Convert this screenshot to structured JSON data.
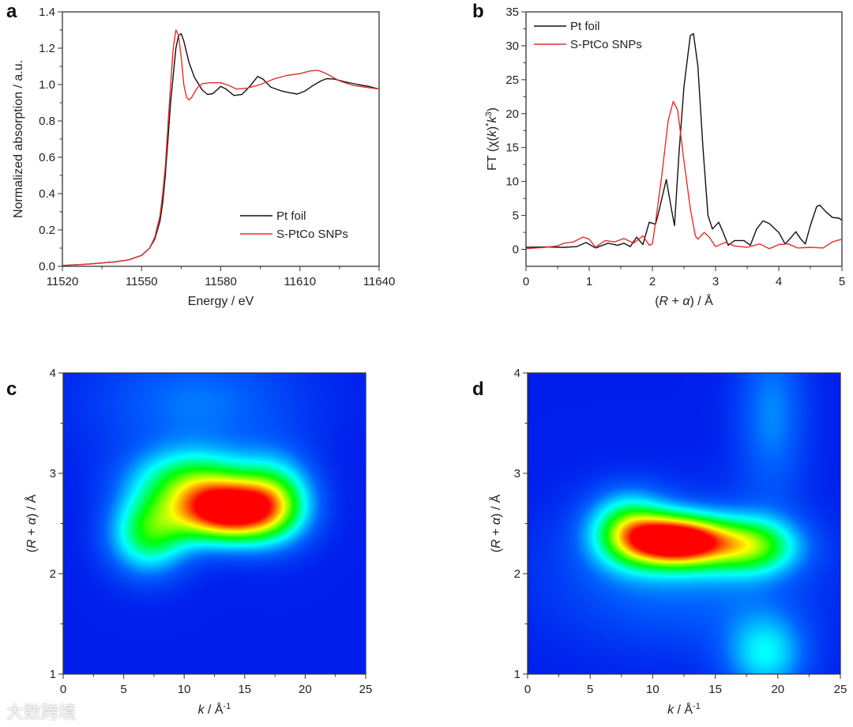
{
  "watermark": "大数跨境",
  "chart_data": [
    {
      "panel": "a",
      "type": "line",
      "xlabel": "Energy / eV",
      "ylabel": "Normalized absorption / a.u.",
      "xlim": [
        11520,
        11640
      ],
      "ylim": [
        0,
        1.4
      ],
      "xticks": [
        "11520",
        "11550",
        "11580",
        "11610",
        "11640"
      ],
      "yticks": [
        "0.0",
        "0.2",
        "0.4",
        "0.6",
        "0.8",
        "1.0",
        "1.2",
        "1.4"
      ],
      "legend": {
        "position": "bottom-right"
      },
      "series": [
        {
          "name": "Pt foil",
          "color": "#111111",
          "x": [
            11520,
            11530,
            11540,
            11545,
            11550,
            11553,
            11555,
            11557,
            11558,
            11559,
            11560,
            11561,
            11562,
            11563,
            11564,
            11565,
            11566,
            11568,
            11570,
            11573,
            11575,
            11577,
            11580,
            11582,
            11585,
            11588,
            11591,
            11594,
            11596,
            11599,
            11603,
            11606,
            11609,
            11612,
            11615,
            11618,
            11620,
            11623,
            11627,
            11632,
            11636,
            11640
          ],
          "y": [
            0.005,
            0.012,
            0.025,
            0.035,
            0.06,
            0.1,
            0.15,
            0.25,
            0.35,
            0.5,
            0.7,
            0.9,
            1.05,
            1.2,
            1.27,
            1.28,
            1.24,
            1.12,
            1.04,
            0.97,
            0.945,
            0.95,
            0.99,
            0.975,
            0.94,
            0.945,
            0.99,
            1.045,
            1.03,
            0.985,
            0.965,
            0.955,
            0.948,
            0.965,
            0.995,
            1.02,
            1.032,
            1.03,
            1.015,
            1.0,
            0.99,
            0.975
          ]
        },
        {
          "name": "S-PtCo SNPs",
          "color": "#e03030",
          "x": [
            11520,
            11530,
            11540,
            11545,
            11550,
            11553,
            11555,
            11557,
            11558,
            11559,
            11560,
            11561,
            11562,
            11563,
            11564,
            11565,
            11566,
            11567,
            11568,
            11569,
            11571,
            11573,
            11576,
            11580,
            11583,
            11586,
            11590,
            11595,
            11600,
            11605,
            11610,
            11614,
            11617,
            11620,
            11625,
            11630,
            11635,
            11640
          ],
          "y": [
            0.005,
            0.012,
            0.025,
            0.035,
            0.06,
            0.1,
            0.16,
            0.28,
            0.4,
            0.55,
            0.78,
            1.0,
            1.2,
            1.3,
            1.27,
            1.15,
            1.0,
            0.93,
            0.915,
            0.93,
            0.98,
            1.005,
            1.01,
            1.01,
            0.995,
            0.975,
            0.98,
            1.0,
            1.03,
            1.05,
            1.06,
            1.075,
            1.078,
            1.06,
            1.02,
            0.995,
            0.985,
            0.975
          ]
        }
      ]
    },
    {
      "panel": "b",
      "type": "line",
      "xlabel": [
        "(",
        "R",
        " + ",
        "α",
        ") / Å"
      ],
      "ylabel": [
        "FT (χ(",
        "k",
        ")",
        "*",
        "k",
        "3",
        ")"
      ],
      "xlim": [
        0,
        5
      ],
      "ylim": [
        -2.5,
        35
      ],
      "xticks": [
        "0",
        "1",
        "2",
        "3",
        "4",
        "5"
      ],
      "yticks": [
        "0",
        "5",
        "10",
        "15",
        "20",
        "25",
        "30",
        "35"
      ],
      "legend": {
        "position": "top-left"
      },
      "series": [
        {
          "name": "Pt foil",
          "color": "#111111",
          "x": [
            0,
            0.3,
            0.6,
            0.8,
            0.95,
            1.1,
            1.3,
            1.45,
            1.55,
            1.65,
            1.75,
            1.85,
            1.95,
            2.05,
            2.1,
            2.22,
            2.3,
            2.35,
            2.42,
            2.5,
            2.6,
            2.65,
            2.72,
            2.8,
            2.88,
            2.95,
            3.05,
            3.12,
            3.2,
            3.3,
            3.45,
            3.55,
            3.65,
            3.75,
            3.85,
            4.0,
            4.1,
            4.2,
            4.27,
            4.35,
            4.42,
            4.5,
            4.6,
            4.65,
            4.75,
            4.85,
            4.95,
            5.0
          ],
          "y": [
            0.3,
            0.35,
            0.3,
            0.4,
            1.0,
            0.2,
            0.9,
            0.6,
            0.9,
            0.4,
            1.8,
            0.7,
            4.0,
            3.7,
            5.5,
            10.3,
            6,
            3.5,
            14,
            24,
            31.5,
            31.8,
            27,
            15,
            5,
            3,
            4,
            2.5,
            0.6,
            1.3,
            1.3,
            0.6,
            3,
            4.2,
            3.8,
            2.5,
            0.8,
            1.8,
            2.6,
            1.5,
            0.8,
            3.5,
            6.3,
            6.5,
            5.5,
            4.7,
            4.6,
            4.3
          ]
        },
        {
          "name": "S-PtCo SNPs",
          "color": "#e03030",
          "x": [
            0,
            0.3,
            0.5,
            0.6,
            0.75,
            0.9,
            1.0,
            1.1,
            1.25,
            1.4,
            1.55,
            1.7,
            1.85,
            1.95,
            2.0,
            2.05,
            2.15,
            2.25,
            2.33,
            2.4,
            2.5,
            2.6,
            2.68,
            2.72,
            2.82,
            2.9,
            3.0,
            3.15,
            3.3,
            3.5,
            3.7,
            3.85,
            4.0,
            4.15,
            4.3,
            4.5,
            4.7,
            4.85,
            5.0
          ],
          "y": [
            0.1,
            0.3,
            0.5,
            0.9,
            1.1,
            1.8,
            1.5,
            0.3,
            1.3,
            1.1,
            1.6,
            0.9,
            2.0,
            0.6,
            0.8,
            4,
            11,
            19,
            21.8,
            20.5,
            13,
            6,
            2,
            1.5,
            2.5,
            1.8,
            0.4,
            1.0,
            0.5,
            0.3,
            0.8,
            0.1,
            0.7,
            0.8,
            0.2,
            0.3,
            0.2,
            1.1,
            1.5
          ]
        }
      ]
    },
    {
      "panel": "c",
      "type": "heatmap",
      "xlabel": [
        "k",
        " / Å",
        "-1"
      ],
      "ylabel": [
        "(",
        "R",
        " + ",
        "α",
        ") / Å"
      ],
      "xlim": [
        0,
        25
      ],
      "ylim": [
        1,
        4
      ],
      "xticks": [
        "0",
        "5",
        "10",
        "15",
        "20",
        "25"
      ],
      "yticks": [
        "1",
        "2",
        "3",
        "4"
      ],
      "colormap": [
        "#0010e8",
        "#0060ff",
        "#00ffff",
        "#00ff00",
        "#ffff00",
        "#ff0000"
      ],
      "maximum": {
        "k": 13.5,
        "R": 2.6
      },
      "components": [
        {
          "k": 13.5,
          "R": 2.62,
          "amp": 1.0,
          "sk": 3.2,
          "sR": 0.22
        },
        {
          "k": 7.0,
          "R": 2.4,
          "amp": 0.5,
          "sk": 2.3,
          "sR": 0.28
        },
        {
          "k": 10.5,
          "R": 2.95,
          "amp": 0.42,
          "sk": 3.5,
          "sR": 0.22
        },
        {
          "k": 17.5,
          "R": 2.75,
          "amp": 0.42,
          "sk": 2.2,
          "sR": 0.3
        },
        {
          "k": 11,
          "R": 3.7,
          "amp": 0.18,
          "sk": 6,
          "sR": 0.4
        }
      ]
    },
    {
      "panel": "d",
      "type": "heatmap",
      "xlabel": [
        "k",
        " / Å",
        "-1"
      ],
      "ylabel": [
        "(",
        "R",
        " + ",
        "α",
        ") / Å"
      ],
      "xlim": [
        0,
        25
      ],
      "ylim": [
        1,
        4
      ],
      "xticks": [
        "0",
        "5",
        "10",
        "15",
        "20",
        "25"
      ],
      "yticks": [
        "1",
        "2",
        "3",
        "4"
      ],
      "colormap": [
        "#0010e8",
        "#0060ff",
        "#00ffff",
        "#00ff00",
        "#ffff00",
        "#ff0000"
      ],
      "maximum": {
        "k": 12,
        "R": 2.32
      },
      "components": [
        {
          "k": 12,
          "R": 2.33,
          "amp": 1.0,
          "sk": 2.8,
          "sR": 0.18
        },
        {
          "k": 8,
          "R": 2.45,
          "amp": 0.48,
          "sk": 2.2,
          "sR": 0.25
        },
        {
          "k": 18,
          "R": 2.28,
          "amp": 0.5,
          "sk": 2.6,
          "sR": 0.2
        },
        {
          "k": 19,
          "R": 1.2,
          "amp": 0.32,
          "sk": 2.3,
          "sR": 0.3
        },
        {
          "k": 19.5,
          "R": 3.6,
          "amp": 0.2,
          "sk": 2.0,
          "sR": 0.6
        },
        {
          "k": 12,
          "R": 2.0,
          "amp": 0.18,
          "sk": 7,
          "sR": 0.5
        }
      ]
    }
  ],
  "panels": {
    "a": {
      "letter": "a",
      "legend": [
        "Pt foil",
        "S-PtCo SNPs"
      ]
    },
    "b": {
      "letter": "b",
      "legend": [
        "Pt foil",
        "S-PtCo SNPs"
      ]
    },
    "c": {
      "letter": "c"
    },
    "d": {
      "letter": "d"
    }
  }
}
